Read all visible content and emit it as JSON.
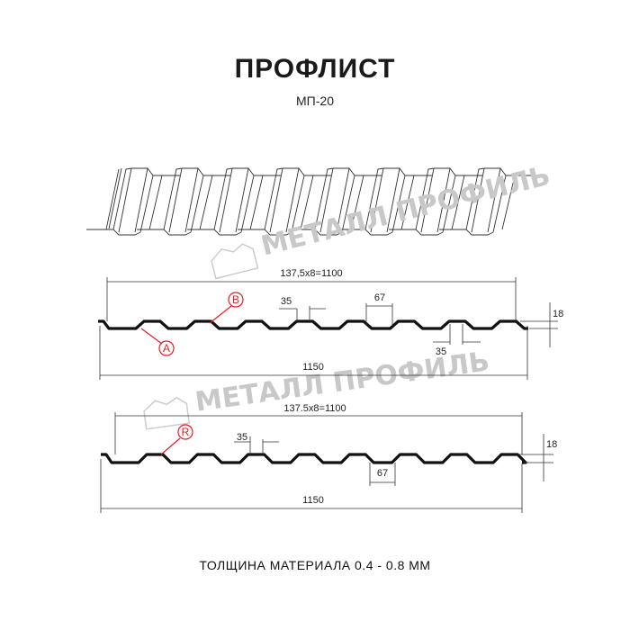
{
  "header": {
    "title": "ПРОФЛИСТ",
    "subtitle": "МП-20"
  },
  "watermark": {
    "text": "МЕТАЛЛ ПРОФИЛЬ"
  },
  "profile1": {
    "pitch_label": "137,5x8=1100",
    "width_label": "1150",
    "crest_label": "35",
    "trough_label": "35",
    "bottom_label": "67",
    "height_label": "18",
    "marker_a": "A",
    "marker_b": "B"
  },
  "profile2": {
    "pitch_label": "137.5x8=1100",
    "width_label": "1150",
    "crest_label": "35",
    "bottom_label": "67",
    "height_label": "18",
    "marker_r": "R"
  },
  "footer": {
    "thickness": "ТОЛЩИНА МАТЕРИАЛА 0.4 - 0.8 ММ"
  },
  "colors": {
    "marker": "#e31e24",
    "profile": "#111111",
    "watermark": "#c8c8c8"
  }
}
